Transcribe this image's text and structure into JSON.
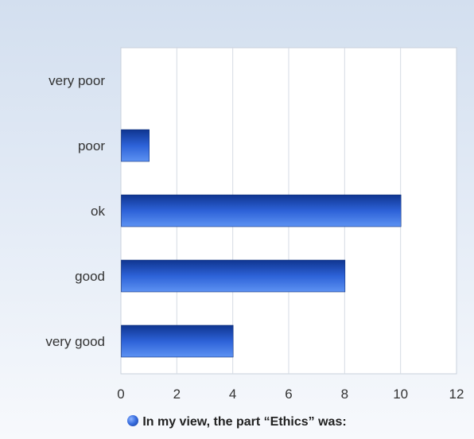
{
  "chart_data": {
    "type": "bar",
    "orientation": "horizontal",
    "categories": [
      "very poor",
      "poor",
      "ok",
      "good",
      "very good"
    ],
    "series": [
      {
        "name": "In my view, the part “Ethics” was:",
        "values": [
          0,
          1,
          10,
          8,
          4
        ]
      }
    ],
    "xlim": [
      0,
      12
    ],
    "xticks": [
      0,
      2,
      4,
      6,
      8,
      10,
      12
    ],
    "grid": true,
    "legend_position": "bottom-center",
    "colors": {
      "bar_dark": "#0f3590",
      "bar_mid": "#2d62d8",
      "bar_light": "#5d92f2",
      "grid": "#d5dbe4"
    }
  }
}
